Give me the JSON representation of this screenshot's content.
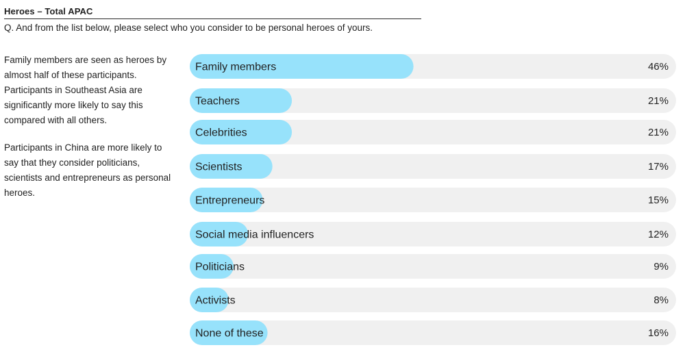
{
  "header": {
    "title": "Heroes – Total APAC",
    "question": "Q. And from the list below, please select who you consider to be personal heroes of yours."
  },
  "narrative": {
    "paragraph_1": "Family members are seen as heroes by almost half of these participants. Participants in Southeast Asia are significantly more likely to say this compared with all others.",
    "paragraph_2": "Participants in China are more likely to say that they consider politicians, scientists and entrepreneurs as personal heroes."
  },
  "colors": {
    "bar_fill": "#97e2fb",
    "track_fill": "#f0f0f0"
  },
  "chart_data": {
    "type": "bar",
    "orientation": "horizontal",
    "categories": [
      "Family members",
      "Teachers",
      "Celebrities",
      "Scientists",
      "Entrepreneurs",
      "Social media influencers",
      "Politicians",
      "Activists",
      "None of these"
    ],
    "values": [
      46,
      21,
      21,
      17,
      15,
      12,
      9,
      8,
      16
    ],
    "value_labels": [
      "46%",
      "21%",
      "21%",
      "17%",
      "15%",
      "12%",
      "9%",
      "8%",
      "16%"
    ],
    "unit": "%",
    "xlim": [
      0,
      100
    ],
    "grid": false,
    "legend": "none"
  }
}
